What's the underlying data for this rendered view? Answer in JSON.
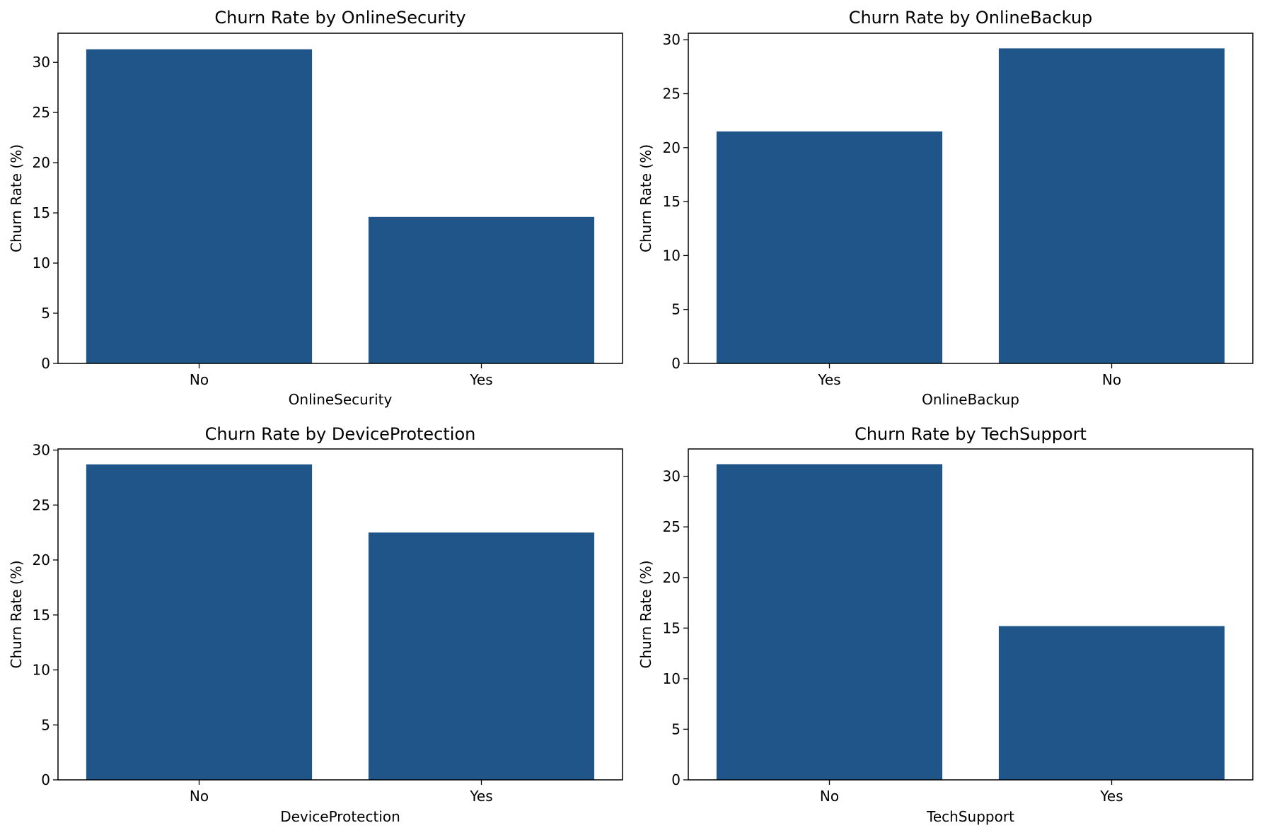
{
  "bar_color": "#20558a",
  "chart_data": [
    {
      "type": "bar",
      "title": "Churn Rate by OnlineSecurity",
      "xlabel": "OnlineSecurity",
      "ylabel": "Churn Rate (%)",
      "categories": [
        "No",
        "Yes"
      ],
      "values": [
        31.3,
        14.6
      ],
      "ylim": [
        0,
        32.9
      ],
      "yticks": [
        0,
        5,
        10,
        15,
        20,
        25,
        30
      ]
    },
    {
      "type": "bar",
      "title": "Churn Rate by OnlineBackup",
      "xlabel": "OnlineBackup",
      "ylabel": "Churn Rate (%)",
      "categories": [
        "Yes",
        "No"
      ],
      "values": [
        21.5,
        29.2
      ],
      "ylim": [
        0,
        30.6
      ],
      "yticks": [
        0,
        5,
        10,
        15,
        20,
        25,
        30
      ]
    },
    {
      "type": "bar",
      "title": "Churn Rate by DeviceProtection",
      "xlabel": "DeviceProtection",
      "ylabel": "Churn Rate (%)",
      "categories": [
        "No",
        "Yes"
      ],
      "values": [
        28.7,
        22.5
      ],
      "ylim": [
        0,
        30.1
      ],
      "yticks": [
        0,
        5,
        10,
        15,
        20,
        25,
        30
      ]
    },
    {
      "type": "bar",
      "title": "Churn Rate by TechSupport",
      "xlabel": "TechSupport",
      "ylabel": "Churn Rate (%)",
      "categories": [
        "No",
        "Yes"
      ],
      "values": [
        31.2,
        15.2
      ],
      "ylim": [
        0,
        32.7
      ],
      "yticks": [
        0,
        5,
        10,
        15,
        20,
        25,
        30
      ]
    }
  ]
}
